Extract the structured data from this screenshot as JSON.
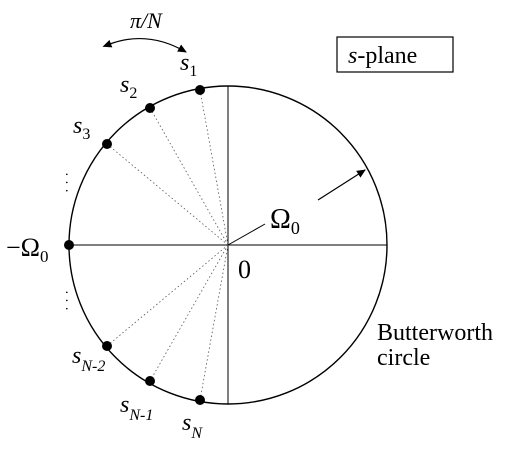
{
  "title_box": "s-plane",
  "title_box_italic": "s",
  "title_box_rest": "-plane",
  "arc_label": "π/N",
  "radius_label": "Ω",
  "radius_sub": "0",
  "neg_radius_label": "−Ω",
  "neg_radius_sub": "0",
  "origin_label": "0",
  "circle_label_line1": "Butterworth",
  "circle_label_line2": "circle",
  "poles": [
    {
      "base": "s",
      "sub": "1"
    },
    {
      "base": "s",
      "sub": "2"
    },
    {
      "base": "s",
      "sub": "3"
    },
    {
      "base": "s",
      "sub": "N-2"
    },
    {
      "base": "s",
      "sub": "N-1"
    },
    {
      "base": "s",
      "sub": "N"
    }
  ],
  "ellipsis_upper": "· · ·",
  "ellipsis_lower": "· · ·"
}
